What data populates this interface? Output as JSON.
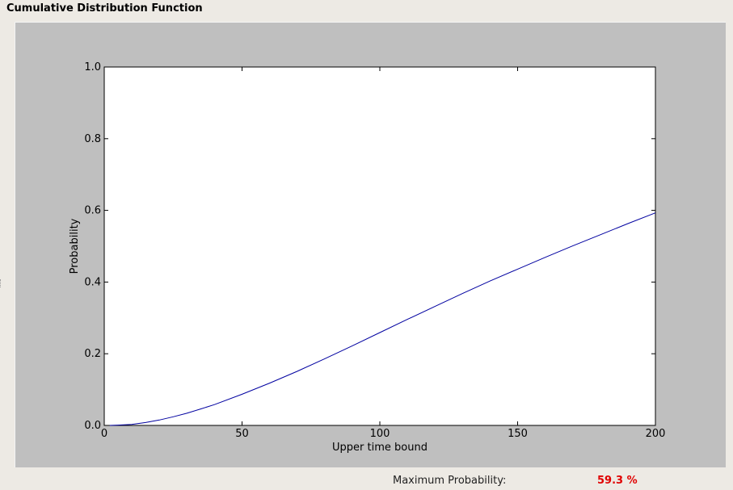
{
  "panel": {
    "title": "Cumulative Distribution Function"
  },
  "footer": {
    "max_prob_label": "Maximum Probability:",
    "max_prob_value": "59.3 %"
  },
  "colors": {
    "frame_bg": "#bfbfbf",
    "plot_bg": "#ffffff",
    "line": "#0000a0",
    "value_red": "#e00000"
  },
  "chart_data": {
    "type": "line",
    "xlabel": "Upper time bound",
    "ylabel": "Probability",
    "xlim": [
      0,
      200
    ],
    "ylim": [
      0,
      1.0
    ],
    "xticks": [
      0,
      50,
      100,
      150,
      200
    ],
    "xtick_labels": [
      "0",
      "50",
      "100",
      "150",
      "200"
    ],
    "yticks": [
      0.0,
      0.2,
      0.4,
      0.6,
      0.8,
      1.0
    ],
    "ytick_labels": [
      "0.0",
      "0.2",
      "0.4",
      "0.6",
      "0.8",
      "1.0"
    ],
    "grid": false,
    "series": [
      {
        "color": "#0000a0",
        "x": [
          2,
          5,
          10,
          15,
          20,
          25,
          30,
          35,
          40,
          50,
          60,
          70,
          80,
          90,
          100,
          110,
          120,
          130,
          140,
          150,
          160,
          170,
          180,
          190,
          200
        ],
        "y": [
          0.0,
          0.001,
          0.003,
          0.008,
          0.015,
          0.024,
          0.034,
          0.046,
          0.058,
          0.087,
          0.118,
          0.151,
          0.186,
          0.222,
          0.259,
          0.296,
          0.332,
          0.368,
          0.403,
          0.436,
          0.469,
          0.501,
          0.532,
          0.563,
          0.593
        ]
      }
    ]
  }
}
